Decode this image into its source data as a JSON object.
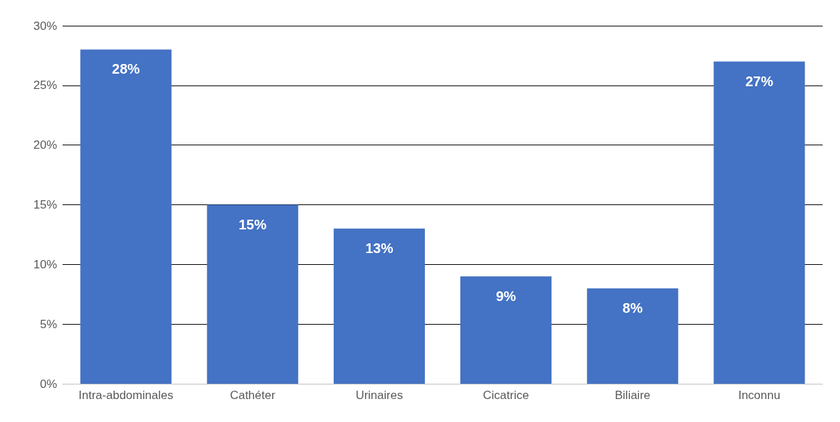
{
  "chart_data": {
    "type": "bar",
    "categories": [
      "Intra-abdominales",
      "Cathéter",
      "Urinaires",
      "Cicatrice",
      "Biliaire",
      "Inconnu"
    ],
    "values": [
      28,
      15,
      13,
      9,
      8,
      27
    ],
    "value_labels": [
      "28%",
      "15%",
      "13%",
      "9%",
      "8%",
      "27%"
    ],
    "color": "#4472c4",
    "ylim": [
      0,
      30
    ],
    "yticks": [
      {
        "value": 0,
        "label": "0%"
      },
      {
        "value": 5,
        "label": "5%"
      },
      {
        "value": 10,
        "label": "10%"
      },
      {
        "value": 15,
        "label": "15%"
      },
      {
        "value": 20,
        "label": "20%"
      },
      {
        "value": 25,
        "label": "25%"
      },
      {
        "value": 30,
        "label": "30%"
      }
    ],
    "grid": "y"
  }
}
